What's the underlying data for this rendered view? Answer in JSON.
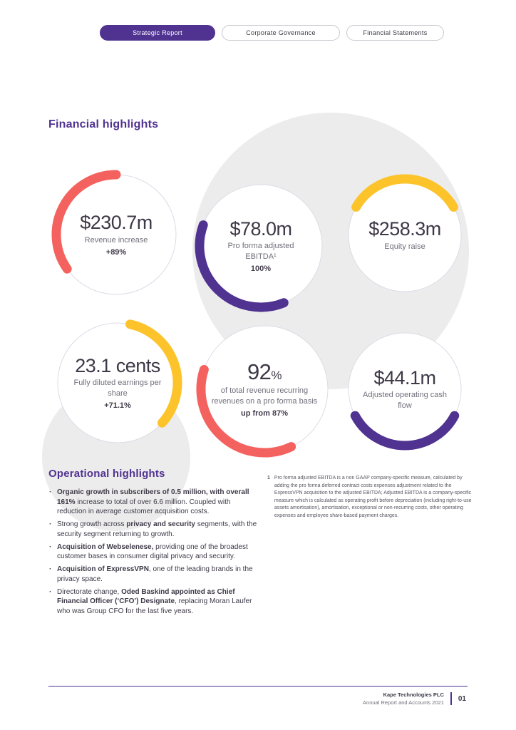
{
  "tabs": [
    {
      "label": "Strategic Report",
      "active": true
    },
    {
      "label": "Corporate Governance",
      "active": false
    },
    {
      "label": "Financial Statements",
      "active": false
    }
  ],
  "financial": {
    "title": "Financial highlights",
    "stats": [
      {
        "value": "$230.7m",
        "suffix": "",
        "label": "Revenue increase",
        "sub": "+89%",
        "color": "#f4625f",
        "arc_start": 235,
        "arc_end": 360
      },
      {
        "value": "$78.0m",
        "suffix": "",
        "label": "Pro forma adjusted EBITDA¹",
        "sub": "100%",
        "color": "#503291",
        "arc_start": 158,
        "arc_end": 290
      },
      {
        "value": "$258.3m",
        "suffix": "",
        "label": "Equity raise",
        "sub": "",
        "color": "#fcc32b",
        "arc_start": 300,
        "arc_end": 420
      },
      {
        "value": "23.1 cents",
        "suffix": "",
        "label": "Fully diluted earnings per share",
        "sub": "+71.1%",
        "color": "#fcc32b",
        "arc_start": 12,
        "arc_end": 132
      },
      {
        "value": "92",
        "suffix": "%",
        "label": "of total revenue recurring revenues on a pro forma basis",
        "sub": "up from 87%",
        "color": "#f4625f",
        "arc_start": 155,
        "arc_end": 288
      },
      {
        "value": "$44.1m",
        "suffix": "",
        "label": "Adjusted operating cash flow",
        "sub": "",
        "color": "#503291",
        "arc_start": 118,
        "arc_end": 242
      }
    ]
  },
  "operational": {
    "title": "Operational highlights",
    "bullets": [
      {
        "segments": [
          {
            "t": "Organic growth in subscribers of 0.5 million, with overall 161%",
            "b": true
          },
          {
            "t": " increase to total of over 6.6 million. Coupled with reduction in average customer acquisition costs.",
            "b": false
          }
        ]
      },
      {
        "segments": [
          {
            "t": "Strong growth across ",
            "b": false
          },
          {
            "t": "privacy and security",
            "b": true
          },
          {
            "t": " segments, with the security segment returning to growth.",
            "b": false
          }
        ]
      },
      {
        "segments": [
          {
            "t": "Acquisition of Webselenese,",
            "b": true
          },
          {
            "t": " providing one of the broadest customer bases in consumer digital privacy and security.",
            "b": false
          }
        ]
      },
      {
        "segments": [
          {
            "t": "Acquisition of ExpressVPN",
            "b": true
          },
          {
            "t": ", one of the leading brands in the privacy space.",
            "b": false
          }
        ]
      },
      {
        "segments": [
          {
            "t": "Directorate change, ",
            "b": false
          },
          {
            "t": "Oded Baskind appointed as Chief Financial Officer (‘CFO’) Designate",
            "b": true
          },
          {
            "t": ", replacing Moran Laufer who was Group CFO for the last five years.",
            "b": false
          }
        ]
      }
    ]
  },
  "footnote": {
    "marker": "1",
    "text": "Pro forma adjusted EBITDA is a non GAAP company-specific measure, calculated by adding the pro forma deferred contract costs expenses adjustment related to the ExpressVPN acquisition to the adjusted EBITDA; Adjusted EBITDA is a company-specific measure which is calculated as operating profit before depreciation (including right-to-use assets amortisation), amortisation, exceptional or non-recurring costs, other operating expenses and employee share-based payment charges."
  },
  "footer": {
    "company": "Kape Technologies PLC",
    "report": "Annual Report and Accounts 2021",
    "page": "01"
  },
  "colors": {
    "purple": "#503291",
    "red": "#f4625f",
    "yellow": "#fcc32b",
    "circle_bg": "#ececec",
    "ring_border": "#dedae6"
  }
}
